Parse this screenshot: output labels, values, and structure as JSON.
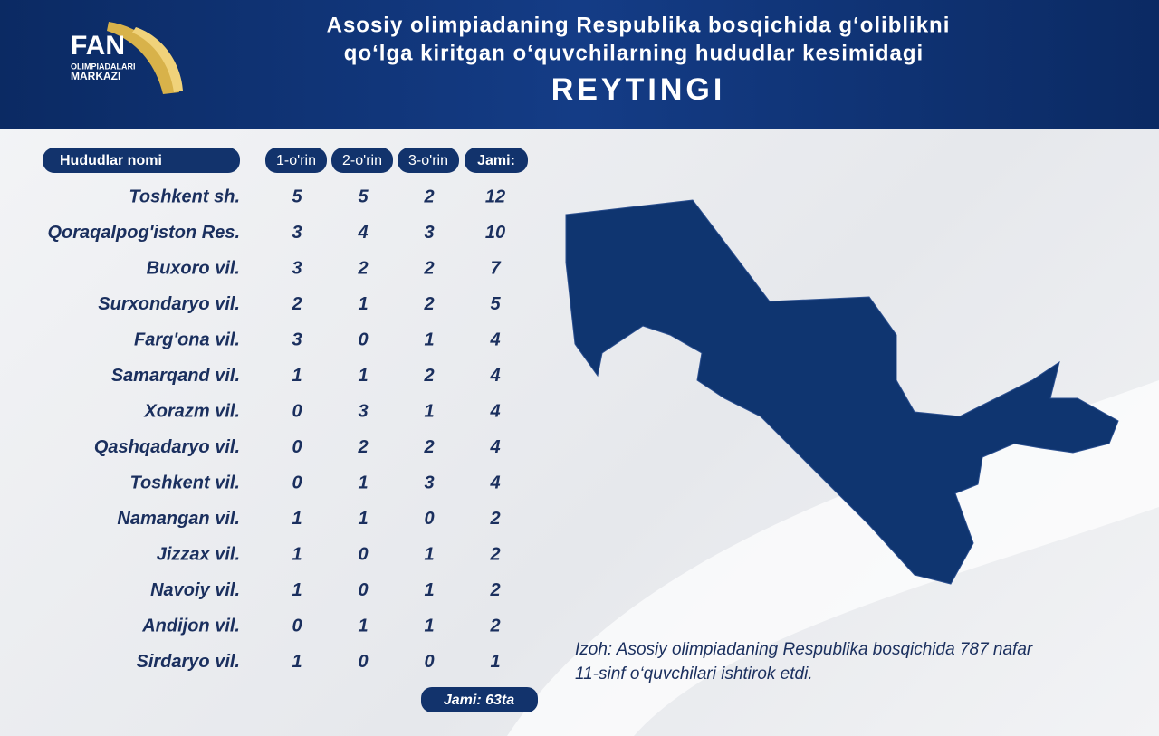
{
  "logo": {
    "name": "FAN",
    "line1": "OLIMPIADALARI",
    "line2": "MARKAZI"
  },
  "header": {
    "title_lines": [
      "Asosiy olimpiadaning Respublika bosqichida g‘oliblikni",
      "qo‘lga kiritgan o‘quvchilarning hududlar kesimidagi",
      "REYTINGI"
    ]
  },
  "table": {
    "columns": [
      "Hududlar nomi",
      "1-o'rin",
      "2-o'rin",
      "3-o'rin",
      "Jami:"
    ],
    "rows": [
      [
        "Toshkent sh.",
        5,
        5,
        2,
        12
      ],
      [
        "Qoraqalpog'iston Res.",
        3,
        4,
        3,
        10
      ],
      [
        "Buxoro vil.",
        3,
        2,
        2,
        7
      ],
      [
        "Surxondaryo vil.",
        2,
        1,
        2,
        5
      ],
      [
        "Farg'ona vil.",
        3,
        0,
        1,
        4
      ],
      [
        "Samarqand vil.",
        1,
        1,
        2,
        4
      ],
      [
        "Xorazm vil.",
        0,
        3,
        1,
        4
      ],
      [
        "Qashqadaryo vil.",
        0,
        2,
        2,
        4
      ],
      [
        "Toshkent vil.",
        0,
        1,
        3,
        4
      ],
      [
        "Namangan vil.",
        1,
        1,
        0,
        2
      ],
      [
        "Jizzax vil.",
        1,
        0,
        1,
        2
      ],
      [
        "Navoiy vil.",
        1,
        0,
        1,
        2
      ],
      [
        "Andijon vil.",
        0,
        1,
        1,
        2
      ],
      [
        "Sirdaryo vil.",
        1,
        0,
        0,
        1
      ]
    ],
    "total": "Jami: 63ta"
  },
  "note_lines": [
    "Izoh: Asosiy olimpiadaning Respublika bosqichida 787 nafar",
    "11-sinf o‘quvchilari ishtirok etdi."
  ]
}
